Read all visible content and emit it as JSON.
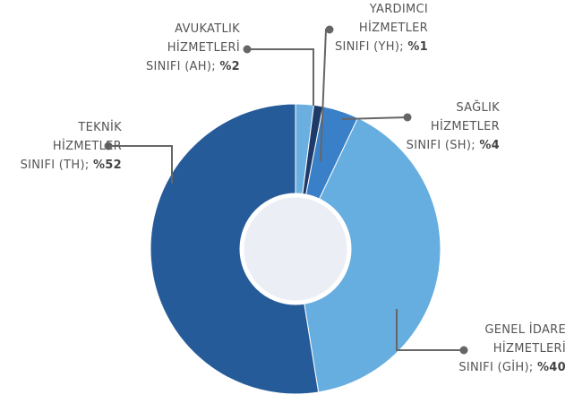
{
  "chart_data": {
    "type": "donut",
    "categories": [
      "AVUKATLIK\nHİZMETLERİ\nSINIFI (AH);",
      "YARDIMCI\nHİZMETLER\nSINIFI (YH);",
      "SAĞLIK\nHİZMETLER\nSINIFI (SH);",
      "GENEL İDARE\nHİZMETLERİ\nSINIFI (GİH);",
      "TEKNİK\nHİZMETLER\nSINIFI (TH);"
    ],
    "values": [
      2,
      1,
      4,
      40,
      52
    ],
    "value_labels": [
      "%2",
      "%1",
      "%4",
      "%40",
      "%52"
    ],
    "colors": [
      "#6aafe0",
      "#1e3a68",
      "#3a80c8",
      "#66ade0",
      "#265b99"
    ]
  }
}
